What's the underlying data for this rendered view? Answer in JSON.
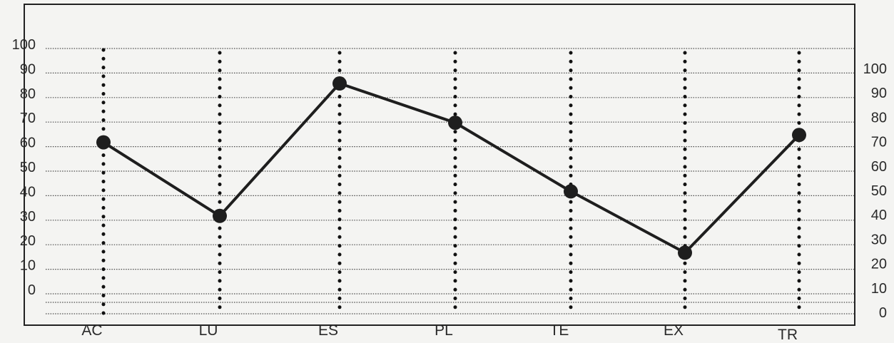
{
  "chart_data": {
    "type": "line",
    "categories": [
      "AC",
      "LU",
      "ES",
      "PL",
      "TE",
      "EX",
      "TR"
    ],
    "values": [
      60,
      30,
      84,
      68,
      40,
      15,
      63
    ],
    "left_axis_ticks": [
      "0",
      "10",
      "20",
      "30",
      "40",
      "50",
      "60",
      "70",
      "80",
      "90",
      "100"
    ],
    "right_axis_ticks": [
      "0",
      "10",
      "20",
      "30",
      "40",
      "50",
      "60",
      "70",
      "80",
      "90",
      "100"
    ],
    "ylim": [
      0,
      100
    ],
    "grid": true,
    "colors": {
      "line": "#1e1e1e",
      "grid": "#4a4a4a",
      "frame": "#222222"
    }
  }
}
